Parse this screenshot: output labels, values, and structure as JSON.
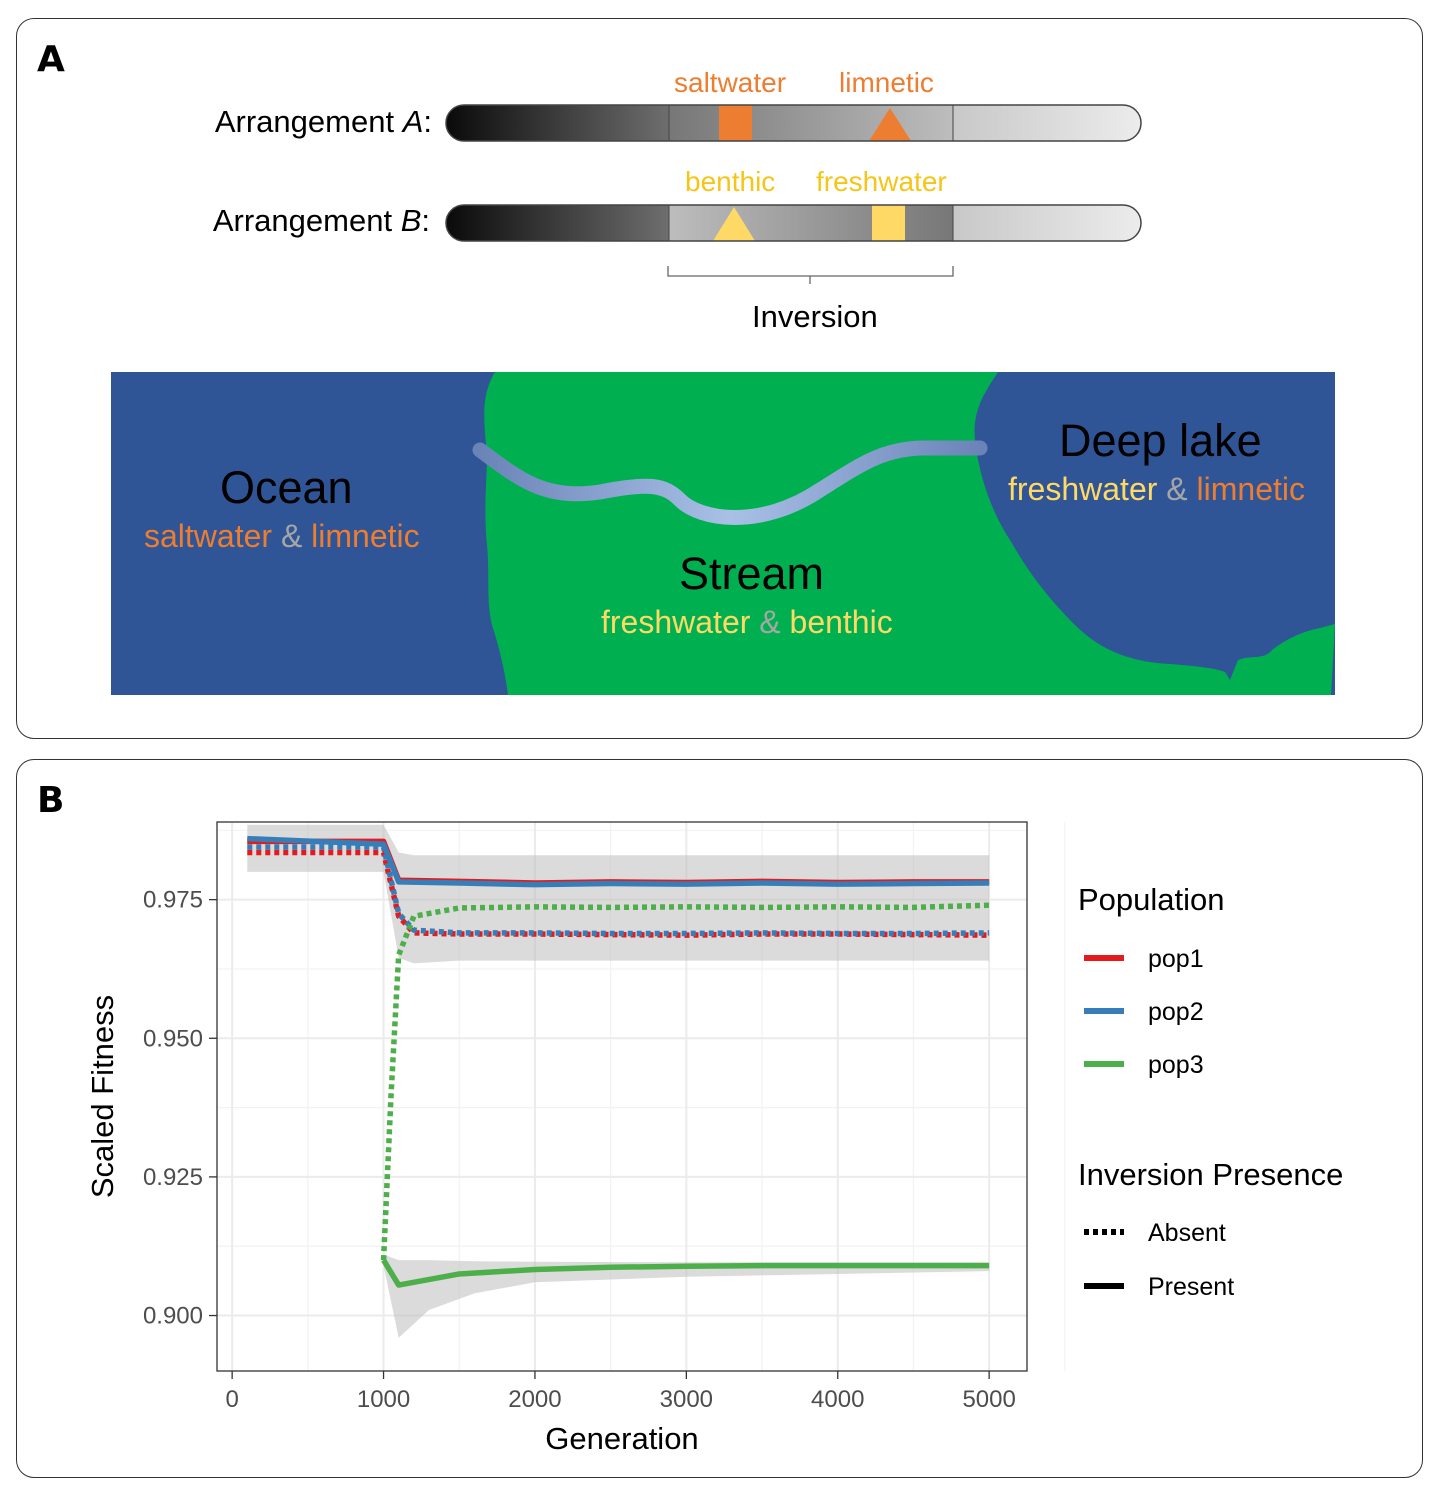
{
  "panel_a": {
    "letter": "A",
    "arrangement_a": {
      "prefix": "Arrangement ",
      "italic": "A",
      "suffix": ":"
    },
    "arrangement_b": {
      "prefix": "Arrangement ",
      "italic": "B",
      "suffix": ":"
    },
    "markers_a": [
      "saltwater",
      "limnetic"
    ],
    "markers_b": [
      "benthic",
      "freshwater"
    ],
    "inversion_label": "Inversion",
    "map": {
      "ocean": {
        "name": "Ocean",
        "trait1": "saltwater",
        "amp": " & ",
        "trait2": "limnetic"
      },
      "stream": {
        "name": "Stream",
        "trait1": "freshwater",
        "amp": " & ",
        "trait2": "benthic"
      },
      "lake": {
        "name": "Deep lake",
        "trait1": "freshwater",
        "amp": " & ",
        "trait2": "limnetic"
      }
    },
    "colors": {
      "orange": "#ED7D31",
      "yellow": "#FFD966",
      "water": "#2F5597",
      "land": "#00B050",
      "river": "#8FAADC",
      "amp": "#A6A6A6"
    }
  },
  "panel_b": {
    "letter": "B"
  },
  "chart_data": {
    "type": "line",
    "xlabel": "Generation",
    "ylabel": "Scaled Fitness",
    "xlim": [
      -100,
      5250
    ],
    "ylim": [
      0.89,
      0.989
    ],
    "x_ticks": [
      "0",
      "1000",
      "2000",
      "3000",
      "4000",
      "5000"
    ],
    "y_ticks": [
      "0.900",
      "0.925",
      "0.950",
      "0.975"
    ],
    "grid": true,
    "legend_position": "right",
    "legend": {
      "population_title": "Population",
      "populations": [
        {
          "name": "pop1",
          "color": "#E41A1C"
        },
        {
          "name": "pop2",
          "color": "#377EB8"
        },
        {
          "name": "pop3",
          "color": "#4DAF4A"
        }
      ],
      "inversion_title": "Inversion Presence",
      "inversion": [
        {
          "name": "Absent",
          "style": "dotted"
        },
        {
          "name": "Present",
          "style": "solid"
        }
      ]
    },
    "series": [
      {
        "name": "pop1",
        "inversion": "Present",
        "x": [
          100,
          1000,
          1100,
          1500,
          2000,
          2500,
          3000,
          3500,
          4000,
          4500,
          5000
        ],
        "y": [
          0.9855,
          0.9855,
          0.9785,
          0.9783,
          0.978,
          0.9782,
          0.9781,
          0.9783,
          0.9781,
          0.9782,
          0.9782
        ]
      },
      {
        "name": "pop2",
        "inversion": "Present",
        "x": [
          100,
          1000,
          1100,
          1500,
          2000,
          2500,
          3000,
          3500,
          4000,
          4500,
          5000
        ],
        "y": [
          0.986,
          0.985,
          0.9782,
          0.978,
          0.9777,
          0.9779,
          0.9778,
          0.978,
          0.9778,
          0.9779,
          0.978
        ]
      },
      {
        "name": "pop3",
        "inversion": "Present",
        "x": [
          1000,
          1100,
          1500,
          2000,
          2500,
          3000,
          3500,
          4000,
          4500,
          5000
        ],
        "y": [
          0.91,
          0.9055,
          0.9075,
          0.9083,
          0.9087,
          0.9089,
          0.909,
          0.909,
          0.909,
          0.909
        ]
      },
      {
        "name": "pop1",
        "inversion": "Absent",
        "x": [
          100,
          1000,
          1100,
          1200,
          1500,
          2000,
          2500,
          3000,
          3500,
          4000,
          4500,
          5000
        ],
        "y": [
          0.9835,
          0.9835,
          0.972,
          0.969,
          0.9688,
          0.9688,
          0.9687,
          0.9686,
          0.9688,
          0.9688,
          0.9687,
          0.9686
        ]
      },
      {
        "name": "pop2",
        "inversion": "Absent",
        "x": [
          100,
          1000,
          1100,
          1200,
          1500,
          2000,
          2500,
          3000,
          3500,
          4000,
          4500,
          5000
        ],
        "y": [
          0.9845,
          0.9845,
          0.9725,
          0.9695,
          0.969,
          0.969,
          0.9689,
          0.9689,
          0.969,
          0.9689,
          0.9689,
          0.969
        ]
      },
      {
        "name": "pop3",
        "inversion": "Absent",
        "x": [
          1000,
          1050,
          1100,
          1200,
          1500,
          2000,
          2500,
          3000,
          3500,
          4000,
          4500,
          5000
        ],
        "y": [
          0.91,
          0.94,
          0.965,
          0.972,
          0.9735,
          0.9737,
          0.9736,
          0.9737,
          0.9736,
          0.9737,
          0.9736,
          0.974
        ]
      }
    ]
  }
}
